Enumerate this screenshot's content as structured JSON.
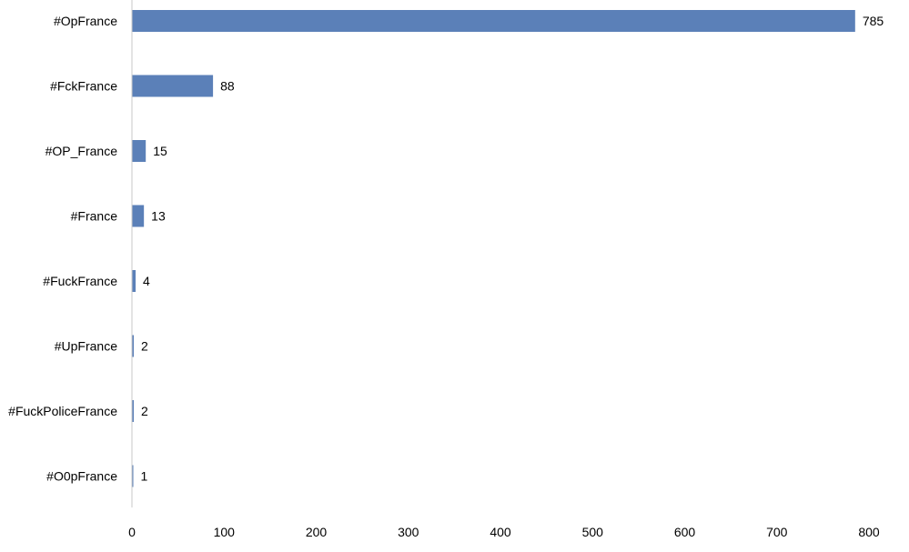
{
  "chart_data": {
    "type": "bar",
    "orientation": "horizontal",
    "categories": [
      "#OpFrance",
      "#FckFrance",
      "#OP_France",
      "#France",
      "#FuckFrance",
      "#UpFrance",
      "#FuckPoliceFrance",
      "#O0pFrance"
    ],
    "values": [
      785,
      88,
      15,
      13,
      4,
      2,
      2,
      1
    ],
    "data_labels": [
      "785",
      "88",
      "15",
      "13",
      "4",
      "2",
      "2",
      "1"
    ],
    "title": "",
    "xlabel": "",
    "ylabel": "",
    "xlim": [
      0,
      800
    ],
    "x_ticks": [
      0,
      100,
      200,
      300,
      400,
      500,
      600,
      700,
      800
    ],
    "x_tick_labels": [
      "0",
      "100",
      "200",
      "300",
      "400",
      "500",
      "600",
      "700",
      "800"
    ],
    "grid": false,
    "legend": "none",
    "bar_color": "#5b80b8",
    "axis_color": "#c8c8c8"
  }
}
